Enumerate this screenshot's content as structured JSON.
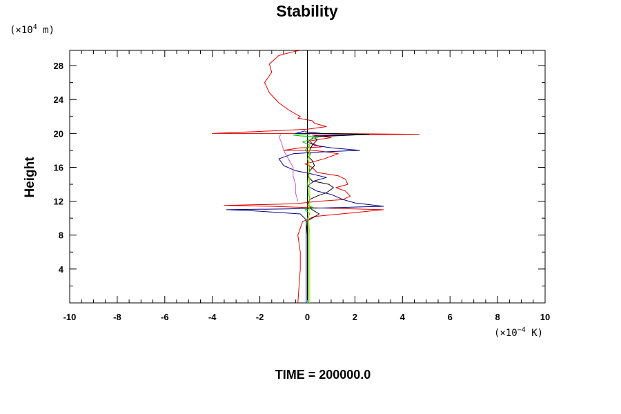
{
  "chart_data": {
    "type": "line",
    "title": "Stability",
    "ylabel": "Height",
    "xlabel": "",
    "y_unit": {
      "prefix": "(×10",
      "exp": "4",
      "suffix": " m)"
    },
    "x_unit": {
      "prefix": "(×10",
      "exp": "−4",
      "suffix": " K)"
    },
    "footer": "TIME = 200000.0",
    "xlim": [
      -10,
      10
    ],
    "ylim": [
      0,
      29.8
    ],
    "x_ticks": [
      -10,
      -8,
      -6,
      -4,
      -2,
      0,
      2,
      4,
      6,
      8,
      10
    ],
    "x_tick_labels": [
      "-10",
      "-8",
      "-6",
      "-4",
      "-2",
      "0",
      "2",
      "4",
      "6",
      "8",
      "10"
    ],
    "y_ticks": [
      4,
      8,
      12,
      16,
      20,
      24,
      28
    ],
    "y_tick_labels": [
      "4",
      "8",
      "12",
      "16",
      "20",
      "24",
      "28"
    ],
    "grid": false,
    "series": [
      {
        "color": "#e00000",
        "points": [
          [
            -0.4,
            0
          ],
          [
            -0.35,
            2
          ],
          [
            -0.3,
            4
          ],
          [
            -0.3,
            6
          ],
          [
            -0.4,
            8
          ],
          [
            -0.2,
            9.6
          ],
          [
            0.3,
            10.2
          ],
          [
            1.8,
            10.6
          ],
          [
            3.2,
            11.0
          ],
          [
            0.5,
            11.2
          ],
          [
            -1.5,
            11.4
          ],
          [
            -3.5,
            11.5
          ],
          [
            -0.5,
            11.7
          ],
          [
            0.5,
            12.0
          ],
          [
            1.5,
            12.2
          ],
          [
            1.8,
            12.6
          ],
          [
            1.6,
            13.2
          ],
          [
            1.2,
            13.6
          ],
          [
            1.7,
            14.0
          ],
          [
            1.6,
            14.6
          ],
          [
            1.3,
            15.0
          ],
          [
            0.4,
            15.4
          ],
          [
            0.2,
            16.0
          ],
          [
            -0.1,
            16.4
          ],
          [
            0.7,
            17.0
          ],
          [
            1.3,
            17.6
          ],
          [
            0.6,
            17.9
          ],
          [
            0.2,
            18.0
          ],
          [
            -1.0,
            18.0
          ],
          [
            -0.3,
            18.3
          ],
          [
            0.6,
            18.4
          ],
          [
            0.2,
            18.8
          ],
          [
            0.1,
            19.1
          ],
          [
            0.5,
            19.3
          ],
          [
            1.0,
            19.5
          ],
          [
            0.2,
            19.8
          ],
          [
            4.7,
            19.9
          ],
          [
            0.5,
            20.0
          ],
          [
            -4.0,
            20.0
          ],
          [
            -1.5,
            20.3
          ],
          [
            0.0,
            20.5
          ],
          [
            0.8,
            20.8
          ],
          [
            0.3,
            21.2
          ],
          [
            0.2,
            21.5
          ],
          [
            -0.4,
            21.8
          ],
          [
            -0.3,
            22.0
          ],
          [
            -0.5,
            22.3
          ],
          [
            -0.8,
            22.8
          ],
          [
            -1.2,
            23.6
          ],
          [
            -1.6,
            24.8
          ],
          [
            -1.8,
            26.0
          ],
          [
            -1.5,
            27.2
          ],
          [
            -1.6,
            28.2
          ],
          [
            -1.2,
            29.2
          ],
          [
            -0.5,
            29.7
          ],
          [
            -0.3,
            29.8
          ]
        ]
      },
      {
        "color": "#000080",
        "points": [
          [
            -0.05,
            0
          ],
          [
            -0.05,
            4
          ],
          [
            -0.05,
            8
          ],
          [
            -0.05,
            9.8
          ],
          [
            -0.3,
            10.5
          ],
          [
            -2.5,
            10.9
          ],
          [
            -3.4,
            11.0
          ],
          [
            -0.8,
            11.1
          ],
          [
            3.2,
            11.4
          ],
          [
            2.0,
            11.8
          ],
          [
            1.5,
            12.2
          ],
          [
            1.0,
            12.8
          ],
          [
            0.4,
            13.2
          ],
          [
            0.0,
            13.8
          ],
          [
            0.3,
            14.4
          ],
          [
            0.8,
            14.8
          ],
          [
            0.2,
            15.2
          ],
          [
            -0.5,
            15.6
          ],
          [
            -1.0,
            16.2
          ],
          [
            -1.2,
            17.0
          ],
          [
            -0.6,
            17.6
          ],
          [
            0.5,
            17.8
          ],
          [
            2.2,
            18.0
          ],
          [
            1.0,
            18.3
          ],
          [
            0.3,
            18.6
          ],
          [
            0.0,
            19.0
          ],
          [
            0.2,
            19.4
          ],
          [
            0.3,
            19.7
          ],
          [
            2.5,
            19.9
          ],
          [
            0.4,
            20.0
          ],
          [
            -0.5,
            20.0
          ],
          [
            -0.1,
            20.3
          ]
        ]
      },
      {
        "color": "#000000",
        "points": [
          [
            0.0,
            0
          ],
          [
            0.0,
            4
          ],
          [
            0.0,
            8
          ],
          [
            -0.05,
            9.6
          ],
          [
            0.2,
            10.0
          ],
          [
            0.5,
            10.5
          ],
          [
            0.2,
            11.0
          ],
          [
            0.0,
            11.6
          ],
          [
            0.1,
            12.2
          ],
          [
            0.4,
            12.6
          ],
          [
            0.8,
            13.0
          ],
          [
            1.1,
            13.6
          ],
          [
            0.9,
            14.0
          ],
          [
            0.2,
            14.4
          ],
          [
            0.0,
            15.0
          ],
          [
            0.1,
            15.6
          ],
          [
            0.3,
            16.2
          ],
          [
            0.2,
            16.8
          ],
          [
            0.0,
            17.4
          ],
          [
            0.1,
            18.0
          ],
          [
            0.2,
            18.6
          ],
          [
            0.4,
            19.2
          ],
          [
            0.3,
            19.6
          ],
          [
            2.6,
            19.9
          ],
          [
            0.6,
            20.0
          ],
          [
            -0.1,
            20.2
          ]
        ]
      },
      {
        "color": "#c060c0",
        "points": [
          [
            -0.4,
            12.0
          ],
          [
            -0.5,
            13.0
          ],
          [
            -0.5,
            14.0
          ],
          [
            -0.6,
            15.0
          ],
          [
            -0.6,
            16.0
          ],
          [
            -0.8,
            17.0
          ],
          [
            -1.0,
            18.0
          ],
          [
            -1.1,
            19.0
          ],
          [
            -1.2,
            19.6
          ],
          [
            -1.1,
            19.9
          ]
        ]
      },
      {
        "color": "#00c000",
        "points": [
          [
            0.05,
            0
          ],
          [
            0.05,
            4
          ],
          [
            0.05,
            8
          ],
          [
            0.0,
            10.0
          ],
          [
            0.1,
            10.5
          ],
          [
            -0.1,
            11.0
          ],
          [
            0.3,
            11.2
          ],
          [
            0.0,
            11.5
          ],
          [
            0.1,
            12.0
          ],
          [
            0.0,
            14.0
          ],
          [
            0.1,
            16.0
          ],
          [
            0.0,
            17.0
          ],
          [
            0.15,
            17.6
          ],
          [
            -0.1,
            18.0
          ],
          [
            0.1,
            18.6
          ],
          [
            -0.2,
            19.0
          ],
          [
            0.3,
            19.4
          ],
          [
            0.5,
            19.6
          ],
          [
            -0.3,
            19.7
          ],
          [
            -0.6,
            19.8
          ],
          [
            0.1,
            19.9
          ]
        ]
      },
      {
        "color": "#c8c800",
        "points": [
          [
            0.1,
            0
          ],
          [
            0.1,
            4
          ],
          [
            0.1,
            8
          ],
          [
            0.05,
            10.0
          ],
          [
            0.1,
            12.0
          ],
          [
            0.1,
            14.0
          ],
          [
            0.05,
            16.0
          ],
          [
            0.1,
            18.0
          ],
          [
            0.05,
            19.5
          ]
        ]
      },
      {
        "color": "#00c0c0",
        "points": [
          [
            0.0,
            0
          ],
          [
            0.0,
            0.3
          ]
        ]
      }
    ],
    "zero_line": {
      "x": 0,
      "color": "#000000"
    }
  }
}
